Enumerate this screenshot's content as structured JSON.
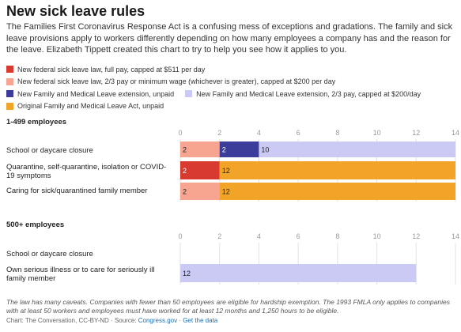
{
  "title": "New sick leave rules",
  "subtitle": "The Families First Coronavirus Response Act is a confusing mess of exceptions and gradations. The family and sick leave provisions apply to workers differently depending on how many employees a company has and the reason for the leave. Elizabeth Tippett created this chart to try to help you see how it applies to you.",
  "legend": [
    {
      "label": "New federal sick leave law, full pay, capped at $511 per day",
      "color": "#d93a2f"
    },
    {
      "label": "New federal sick leave law, 2/3 pay or minimum wage (whichever is greater), capped at $200 per day",
      "color": "#f7a590"
    },
    {
      "label": "New Family and Medical Leave extension, unpaid",
      "color": "#3c3c9a"
    },
    {
      "label": "New Family and Medical Leave extension, 2/3 pay, capped at $200/day",
      "color": "#cbcaf5"
    },
    {
      "label": "Original Family and Medical Leave Act, unpaid",
      "color": "#f2a428"
    }
  ],
  "chart_data": {
    "type": "bar",
    "orientation": "horizontal",
    "stacked": true,
    "xlim": [
      0,
      14
    ],
    "ticks": [
      0,
      2,
      4,
      6,
      8,
      10,
      12,
      14
    ],
    "groups": [
      {
        "name": "1-499 employees",
        "categories": [
          {
            "label": "School or daycare closure",
            "segments": [
              {
                "series": 1,
                "value": 2,
                "label": "2"
              },
              {
                "series": 2,
                "value": 2,
                "label": "2"
              },
              {
                "series": 3,
                "value": 10,
                "label": "10"
              }
            ]
          },
          {
            "label": "Quarantine, self-quarantine, isolation or COVID-19 symptoms",
            "segments": [
              {
                "series": 0,
                "value": 2,
                "label": "2"
              },
              {
                "series": 4,
                "value": 12,
                "label": "12"
              }
            ]
          },
          {
            "label": "Caring for sick/quarantined family member",
            "segments": [
              {
                "series": 1,
                "value": 2,
                "label": "2"
              },
              {
                "series": 4,
                "value": 12,
                "label": "12"
              }
            ]
          }
        ]
      },
      {
        "name": "500+ employees",
        "categories": [
          {
            "label": "School or daycare closure",
            "segments": []
          },
          {
            "label": "Own serious illness or to care for seriously ill family member",
            "segments": [
              {
                "series": 3,
                "value": 12,
                "label": "12"
              }
            ]
          }
        ]
      }
    ]
  },
  "note": "The law has many caveats. Companies with fewer than 50 employees are eligible for hardship exemption. The 1993 FMLA only applies to companies with at least 50 workers and employees must have worked for at least 12 months and 1,250 hours to be eligible.",
  "source": {
    "prefix": "Chart: The Conversation, CC-BY-ND · Source: ",
    "source_link": "Congress.gov",
    "sep": " · ",
    "data_link": "Get the data"
  }
}
